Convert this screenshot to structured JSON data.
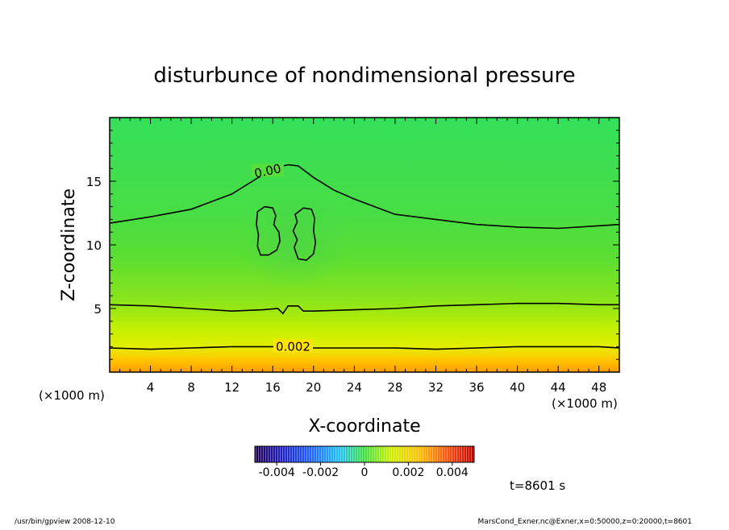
{
  "chart_data": {
    "type": "heatmap",
    "title": "disturbunce of nondimensional pressure",
    "xlabel": "X-coordinate",
    "ylabel": "Z-coordinate",
    "x_unit_left": "(×1000 m)",
    "x_unit_right": "(×1000 m)",
    "xlim": [
      0,
      50
    ],
    "ylim": [
      0,
      20
    ],
    "x_ticks": [
      4,
      8,
      12,
      16,
      20,
      24,
      28,
      32,
      36,
      40,
      44,
      48
    ],
    "y_ticks": [
      5,
      10,
      15
    ],
    "contours": [
      {
        "label": "0.00",
        "level": 0.0,
        "points": [
          [
            0,
            11.7
          ],
          [
            4,
            12.2
          ],
          [
            8,
            12.8
          ],
          [
            12,
            14.0
          ],
          [
            14,
            15.0
          ],
          [
            16,
            16.0
          ],
          [
            17.5,
            16.3
          ],
          [
            18.5,
            16.2
          ],
          [
            20,
            15.3
          ],
          [
            22,
            14.3
          ],
          [
            24,
            13.6
          ],
          [
            26,
            13.0
          ],
          [
            28,
            12.4
          ],
          [
            32,
            12.0
          ],
          [
            36,
            11.6
          ],
          [
            40,
            11.4
          ],
          [
            44,
            11.3
          ],
          [
            48,
            11.5
          ],
          [
            50,
            11.6
          ]
        ]
      },
      {
        "label": "",
        "level": 0.001,
        "points": [
          [
            0,
            5.3
          ],
          [
            4,
            5.2
          ],
          [
            8,
            5.0
          ],
          [
            12,
            4.8
          ],
          [
            15,
            4.9
          ],
          [
            16.5,
            5.0
          ],
          [
            17,
            4.6
          ],
          [
            17.5,
            5.2
          ],
          [
            18.5,
            5.2
          ],
          [
            19,
            4.8
          ],
          [
            20,
            4.8
          ],
          [
            24,
            4.9
          ],
          [
            28,
            5.0
          ],
          [
            32,
            5.2
          ],
          [
            36,
            5.3
          ],
          [
            40,
            5.4
          ],
          [
            44,
            5.4
          ],
          [
            48,
            5.3
          ],
          [
            50,
            5.3
          ]
        ]
      },
      {
        "label": "0.002",
        "level": 0.002,
        "points": [
          [
            0,
            1.9
          ],
          [
            4,
            1.8
          ],
          [
            8,
            1.9
          ],
          [
            12,
            2.0
          ],
          [
            16,
            2.0
          ],
          [
            20,
            1.9
          ],
          [
            24,
            1.9
          ],
          [
            28,
            1.9
          ],
          [
            32,
            1.8
          ],
          [
            36,
            1.9
          ],
          [
            40,
            2.0
          ],
          [
            44,
            2.0
          ],
          [
            48,
            2.0
          ],
          [
            50,
            1.9
          ]
        ]
      },
      {
        "label": "",
        "level": 0.0,
        "points": [
          [
            15.2,
            13.0
          ],
          [
            16.0,
            12.9
          ],
          [
            16.3,
            12.3
          ],
          [
            16.1,
            11.6
          ],
          [
            16.6,
            11.0
          ],
          [
            16.7,
            10.3
          ],
          [
            16.4,
            9.6
          ],
          [
            15.6,
            9.2
          ],
          [
            14.8,
            9.2
          ],
          [
            14.5,
            9.9
          ],
          [
            14.6,
            10.8
          ],
          [
            14.4,
            11.6
          ],
          [
            14.5,
            12.6
          ],
          [
            15.2,
            13.0
          ]
        ]
      },
      {
        "label": "",
        "level": 0.0,
        "points": [
          [
            19.0,
            12.9
          ],
          [
            19.8,
            12.8
          ],
          [
            20.1,
            12.1
          ],
          [
            20.0,
            11.1
          ],
          [
            20.2,
            10.2
          ],
          [
            20.0,
            9.3
          ],
          [
            19.3,
            8.8
          ],
          [
            18.5,
            8.9
          ],
          [
            18.1,
            9.8
          ],
          [
            18.4,
            10.4
          ],
          [
            18.0,
            11.1
          ],
          [
            18.4,
            11.8
          ],
          [
            18.2,
            12.4
          ],
          [
            19.0,
            12.9
          ]
        ]
      }
    ],
    "colorbar": {
      "ticks": [
        "-0.004",
        "-0.002",
        "0",
        "0.002",
        "0.004"
      ],
      "range": [
        -0.005,
        0.005
      ]
    },
    "time_label": "t=8601 s",
    "footer_left": "/usr/bin/gpview  2008-12-10",
    "footer_right": "MarsCond_Exner.nc@Exner,x=0:50000,z=0:20000,t=8601"
  }
}
